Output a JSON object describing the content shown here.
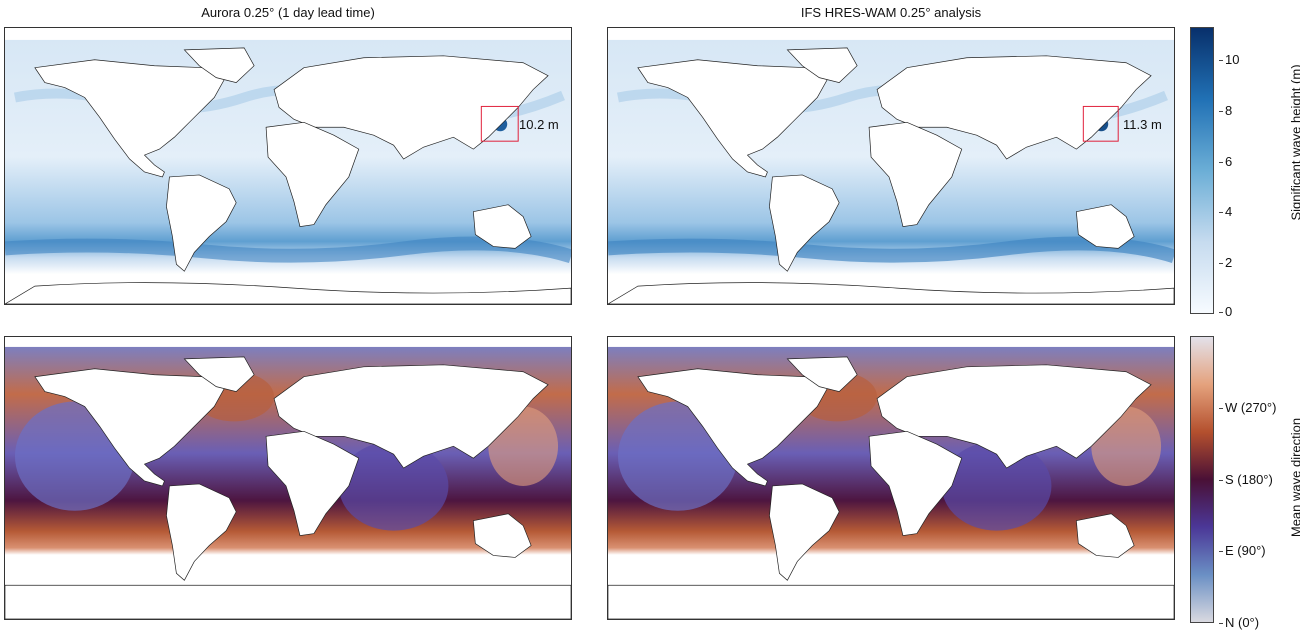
{
  "panels": {
    "left_title": "Aurora 0.25° (1 day lead time)",
    "right_title": "IFS HRES-WAM 0.25° analysis",
    "left_callout": "10.2 m",
    "right_callout": "11.3 m"
  },
  "colorbars": {
    "height": {
      "label": "Significant wave height (m)",
      "ticks": [
        "0",
        "2",
        "4",
        "6",
        "8",
        "10"
      ],
      "range": [
        0,
        11.3
      ],
      "colors": [
        "#f7fbff",
        "#c6dbef",
        "#6baed6",
        "#2171b5",
        "#08306b"
      ]
    },
    "direction": {
      "label": "Mean wave direction",
      "ticks": [
        "N (0°)",
        "E (90°)",
        "S (180°)",
        "W (270°)"
      ],
      "colors": [
        "#d9d9e0",
        "#6a8fc4",
        "#4b3797",
        "#4a1036",
        "#b4502e",
        "#e4a27d",
        "#e3e1ea"
      ]
    }
  }
}
